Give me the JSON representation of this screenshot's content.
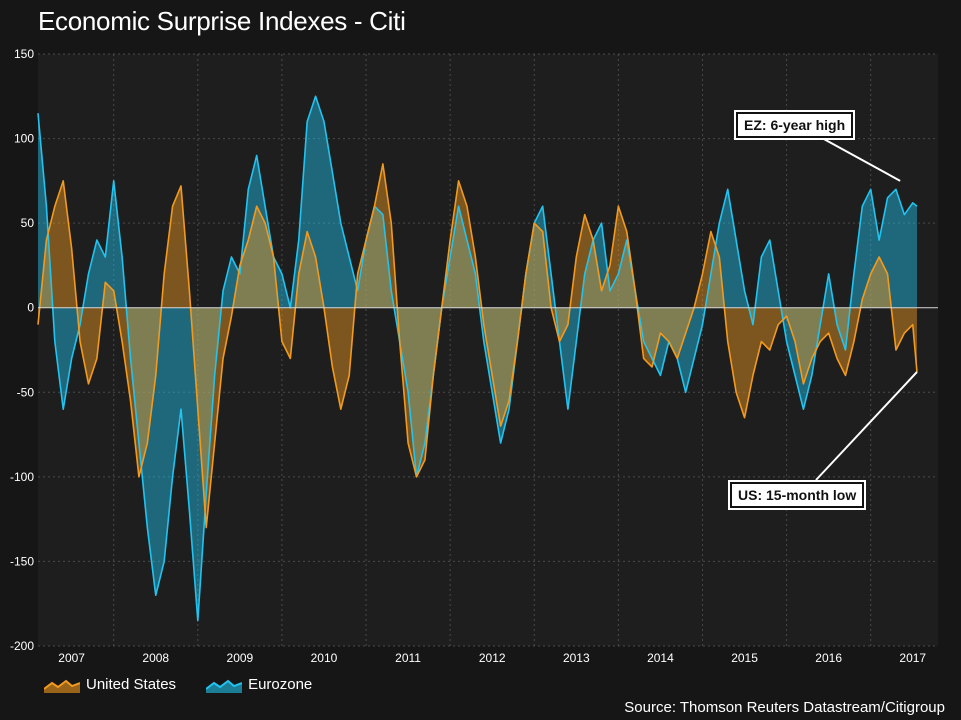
{
  "title": "Economic Surprise Indexes - Citi",
  "source": "Source: Thomson Reuters Datastream/Citigroup",
  "legend": {
    "us": "United States",
    "ez": "Eurozone"
  },
  "annotations": {
    "ez": "EZ: 6-year high",
    "us": "US: 15-month low"
  },
  "colors": {
    "us": "#f29a1e",
    "ez": "#22c3ef",
    "background": "#161616",
    "plot_bg": "#1e1e1e",
    "grid": "#4a4a4a"
  },
  "chart_data": {
    "type": "area",
    "title": "Economic Surprise Indexes - Citi",
    "xlabel": "",
    "ylabel": "",
    "xlim": [
      2006.6,
      2017.3
    ],
    "ylim": [
      -200,
      150
    ],
    "yticks": [
      150,
      100,
      50,
      0,
      -50,
      -100,
      -150,
      -200
    ],
    "xticks": [
      {
        "label": "2007",
        "pos": 2007.0
      },
      {
        "label": "2008",
        "pos": 2008.0
      },
      {
        "label": "2009",
        "pos": 2009.0
      },
      {
        "label": "2010",
        "pos": 2010.0
      },
      {
        "label": "2011",
        "pos": 2011.0
      },
      {
        "label": "2012",
        "pos": 2012.0
      },
      {
        "label": "2013",
        "pos": 2013.0
      },
      {
        "label": "2014",
        "pos": 2014.0
      },
      {
        "label": "2015",
        "pos": 2015.0
      },
      {
        "label": "2016",
        "pos": 2016.0
      },
      {
        "label": "2017",
        "pos": 2017.0
      }
    ],
    "series": [
      {
        "name": "United States",
        "x": [
          2006.6,
          2006.7,
          2006.8,
          2006.9,
          2007.0,
          2007.1,
          2007.2,
          2007.3,
          2007.4,
          2007.5,
          2007.6,
          2007.7,
          2007.8,
          2007.9,
          2008.0,
          2008.1,
          2008.2,
          2008.3,
          2008.4,
          2008.5,
          2008.6,
          2008.7,
          2008.8,
          2008.9,
          2009.0,
          2009.1,
          2009.2,
          2009.3,
          2009.4,
          2009.5,
          2009.6,
          2009.7,
          2009.8,
          2009.9,
          2010.0,
          2010.1,
          2010.2,
          2010.3,
          2010.4,
          2010.5,
          2010.6,
          2010.7,
          2010.8,
          2010.9,
          2011.0,
          2011.1,
          2011.2,
          2011.3,
          2011.4,
          2011.5,
          2011.6,
          2011.7,
          2011.8,
          2011.9,
          2012.0,
          2012.1,
          2012.2,
          2012.3,
          2012.4,
          2012.5,
          2012.6,
          2012.7,
          2012.8,
          2012.9,
          2013.0,
          2013.1,
          2013.2,
          2013.3,
          2013.4,
          2013.5,
          2013.6,
          2013.7,
          2013.8,
          2013.9,
          2014.0,
          2014.1,
          2014.2,
          2014.3,
          2014.4,
          2014.5,
          2014.6,
          2014.7,
          2014.8,
          2014.9,
          2015.0,
          2015.1,
          2015.2,
          2015.3,
          2015.4,
          2015.5,
          2015.6,
          2015.7,
          2015.8,
          2015.9,
          2016.0,
          2016.1,
          2016.2,
          2016.3,
          2016.4,
          2016.5,
          2016.6,
          2016.7,
          2016.8,
          2016.9,
          2017.0,
          2017.05
        ],
        "values": [
          -10,
          40,
          60,
          75,
          35,
          -20,
          -45,
          -30,
          15,
          10,
          -20,
          -55,
          -100,
          -80,
          -40,
          20,
          60,
          72,
          10,
          -60,
          -130,
          -80,
          -30,
          -5,
          25,
          40,
          60,
          50,
          30,
          -20,
          -30,
          20,
          45,
          30,
          0,
          -35,
          -60,
          -40,
          20,
          40,
          60,
          85,
          50,
          -20,
          -80,
          -100,
          -90,
          -40,
          0,
          40,
          75,
          60,
          30,
          -10,
          -40,
          -70,
          -55,
          -20,
          20,
          50,
          45,
          0,
          -20,
          -10,
          30,
          55,
          40,
          10,
          25,
          60,
          45,
          10,
          -30,
          -35,
          -15,
          -20,
          -30,
          -15,
          0,
          20,
          45,
          30,
          -20,
          -50,
          -65,
          -40,
          -20,
          -25,
          -10,
          -5,
          -20,
          -45,
          -30,
          -20,
          -15,
          -30,
          -40,
          -20,
          5,
          20,
          30,
          20,
          -25,
          -15,
          -10,
          -38
        ],
        "end_value": -38
      },
      {
        "name": "Eurozone",
        "x": [
          2006.6,
          2006.7,
          2006.8,
          2006.9,
          2007.0,
          2007.1,
          2007.2,
          2007.3,
          2007.4,
          2007.5,
          2007.6,
          2007.7,
          2007.8,
          2007.9,
          2008.0,
          2008.1,
          2008.2,
          2008.3,
          2008.4,
          2008.5,
          2008.6,
          2008.7,
          2008.8,
          2008.9,
          2009.0,
          2009.1,
          2009.2,
          2009.3,
          2009.4,
          2009.5,
          2009.6,
          2009.7,
          2009.8,
          2009.9,
          2010.0,
          2010.1,
          2010.2,
          2010.3,
          2010.4,
          2010.5,
          2010.6,
          2010.7,
          2010.8,
          2010.9,
          2011.0,
          2011.1,
          2011.2,
          2011.3,
          2011.4,
          2011.5,
          2011.6,
          2011.7,
          2011.8,
          2011.9,
          2012.0,
          2012.1,
          2012.2,
          2012.3,
          2012.4,
          2012.5,
          2012.6,
          2012.7,
          2012.8,
          2012.9,
          2013.0,
          2013.1,
          2013.2,
          2013.3,
          2013.4,
          2013.5,
          2013.6,
          2013.7,
          2013.8,
          2013.9,
          2014.0,
          2014.1,
          2014.2,
          2014.3,
          2014.4,
          2014.5,
          2014.6,
          2014.7,
          2014.8,
          2014.9,
          2015.0,
          2015.1,
          2015.2,
          2015.3,
          2015.4,
          2015.5,
          2015.6,
          2015.7,
          2015.8,
          2015.9,
          2016.0,
          2016.1,
          2016.2,
          2016.3,
          2016.4,
          2016.5,
          2016.6,
          2016.7,
          2016.8,
          2016.9,
          2017.0,
          2017.05
        ],
        "values": [
          115,
          60,
          -20,
          -60,
          -30,
          -10,
          20,
          40,
          30,
          75,
          30,
          -30,
          -80,
          -130,
          -170,
          -150,
          -100,
          -60,
          -120,
          -185,
          -110,
          -40,
          10,
          30,
          20,
          70,
          90,
          60,
          30,
          20,
          0,
          40,
          110,
          125,
          110,
          80,
          50,
          30,
          10,
          40,
          60,
          55,
          10,
          -20,
          -50,
          -100,
          -80,
          -40,
          0,
          30,
          60,
          40,
          20,
          -20,
          -50,
          -80,
          -60,
          -20,
          20,
          50,
          60,
          20,
          -20,
          -60,
          -20,
          20,
          40,
          50,
          10,
          20,
          40,
          10,
          -20,
          -30,
          -40,
          -20,
          -30,
          -50,
          -30,
          -10,
          20,
          50,
          70,
          40,
          10,
          -10,
          30,
          40,
          10,
          -20,
          -40,
          -60,
          -40,
          -10,
          20,
          -10,
          -25,
          20,
          60,
          70,
          40,
          65,
          70,
          55,
          62,
          60
        ],
        "end_value": 60
      }
    ]
  }
}
